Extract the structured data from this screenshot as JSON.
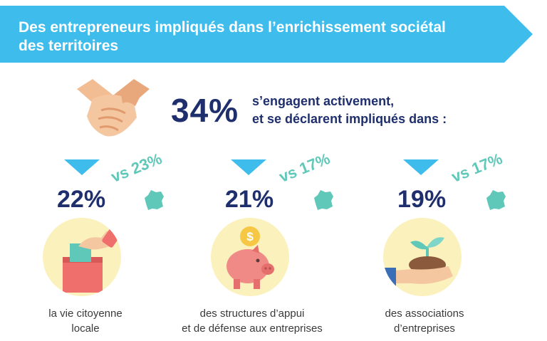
{
  "banner": {
    "title": "Des entrepreneurs impliqués dans l’enrichissement sociétal des territoires",
    "color": "#3ebcec"
  },
  "headline": {
    "percent": "34%",
    "text_line1": "s’engagent activement,",
    "text_line2": "et se déclarent impliqués dans :"
  },
  "items": [
    {
      "percent": "22%",
      "comparison": "vs 23%",
      "icon": "ballot-box-icon",
      "label": "la vie citoyenne\nlocale"
    },
    {
      "percent": "21%",
      "comparison": "vs 17%",
      "icon": "piggy-bank-icon",
      "label": "des structures d’appui\net de défense aux entreprises"
    },
    {
      "percent": "19%",
      "comparison": "vs 17%",
      "icon": "plant-in-hand-icon",
      "label": "des associations\nd’entreprises"
    }
  ],
  "colors": {
    "navy": "#1f2f6d",
    "teal": "#5fc8b8",
    "circle": "#fbf1bd",
    "triangle": "#3ebcec"
  }
}
